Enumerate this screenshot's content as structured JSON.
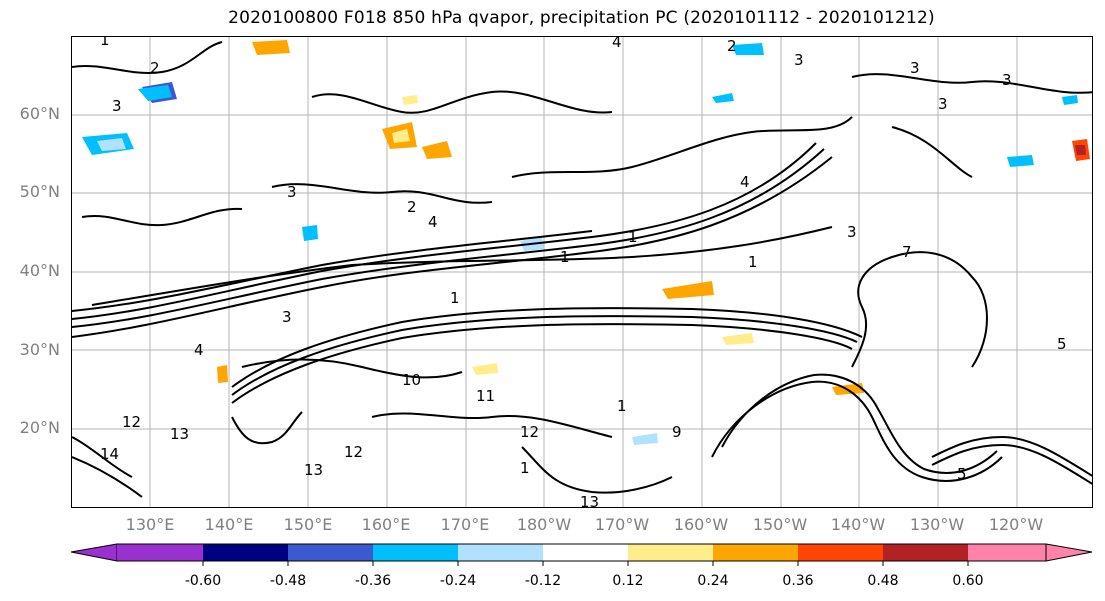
{
  "title": "2020100800 F018 850 hPa qvapor, precipitation PC (2020101112 - 2020101212)",
  "map": {
    "lat_labels": [
      "60°N",
      "50°N",
      "40°N",
      "30°N",
      "20°N"
    ],
    "lon_labels": [
      "130°E",
      "140°E",
      "150°E",
      "160°E",
      "170°E",
      "180°W",
      "170°W",
      "160°W",
      "150°W",
      "140°W",
      "130°W",
      "120°W"
    ],
    "contour_labels": [
      "1",
      "2",
      "3",
      "2",
      "3",
      "3",
      "4",
      "3",
      "3",
      "4",
      "3",
      "3",
      "4",
      "2",
      "1",
      "1",
      "1",
      "1",
      "3",
      "4",
      "12",
      "11",
      "13",
      "13",
      "13",
      "14",
      "12",
      "12",
      "10",
      "9",
      "1",
      "1",
      "5",
      "7",
      "5"
    ],
    "contour_color": "#000000",
    "grid": true
  },
  "colorbar": {
    "colors": [
      "#9b30d0",
      "#000080",
      "#3a5acd",
      "#00bfff",
      "#b0e2ff",
      "#ffffff",
      "#ffec8b",
      "#ffa500",
      "#ff4500",
      "#b22222",
      "#ff82ab"
    ],
    "tick_labels": [
      "-0.60",
      "-0.48",
      "-0.36",
      "-0.24",
      "-0.12",
      "0.12",
      "0.24",
      "0.36",
      "0.48",
      "0.60"
    ]
  }
}
